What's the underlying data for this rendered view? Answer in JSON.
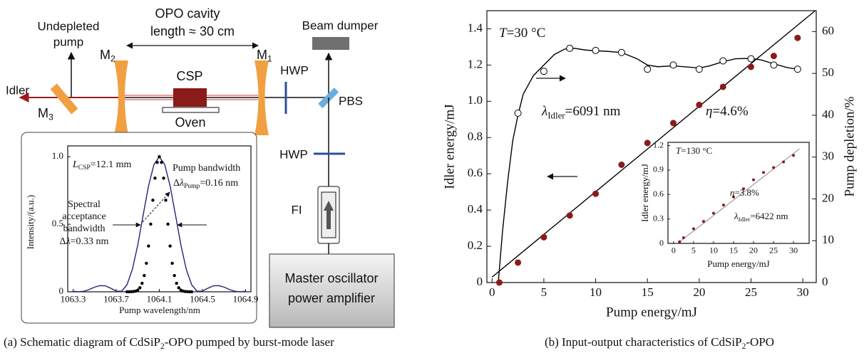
{
  "diagram": {
    "labels": {
      "opo_cavity": "OPO cavity",
      "cavity_length": "length ≈ 30 cm",
      "undepleted_1": "Undepleted",
      "undepleted_2": "pump",
      "beam_dumper": "Beam dumper",
      "idler": "Idler",
      "csp": "CSP",
      "oven": "Oven",
      "hwp_1": "HWP",
      "hwp_2": "HWP",
      "pbs": "PBS",
      "fi": "FI",
      "mopa_1": "Master oscillator",
      "mopa_2": "power amplifier"
    },
    "mirror_labels": [
      [
        {
          "t": "M"
        },
        {
          "t": "2",
          "sub": true
        }
      ],
      [
        {
          "t": "M"
        },
        {
          "t": "1",
          "sub": true
        }
      ],
      [
        {
          "t": "M"
        },
        {
          "t": "3",
          "sub": true
        }
      ]
    ]
  },
  "captions": {
    "a": [
      {
        "t": "(a) Schematic diagram of CdSiP"
      },
      {
        "t": "2",
        "sub": true
      },
      {
        "t": "-OPO pumped by burst-mode laser"
      }
    ],
    "b": [
      {
        "t": "(b) Input-output characteristics of CdSiP"
      },
      {
        "t": "2",
        "sub": true
      },
      {
        "t": "-OPO"
      }
    ]
  },
  "chart_data": [
    {
      "type": "line",
      "x_label": "Pump wavelength/nm",
      "y_label": "Intensity/(a.u.)",
      "xlim": [
        1063.25,
        1064.95
      ],
      "xticks": [
        1063.3,
        1063.7,
        1064.1,
        1064.5,
        1064.9
      ],
      "ylim": [
        0,
        1.08
      ],
      "yticks": [
        0,
        0.5,
        {
          "value": 1,
          "label": "1.0"
        }
      ],
      "series": [
        {
          "type": "line",
          "color": "#23237a",
          "x": [
            1063.3,
            1063.35,
            1063.4,
            1063.45,
            1063.5,
            1063.55,
            1063.6,
            1063.65,
            1063.7,
            1063.75,
            1063.8,
            1063.85,
            1063.9,
            1063.95,
            1064,
            1064.05,
            1064.1,
            1064.15,
            1064.2,
            1064.25,
            1064.3,
            1064.35,
            1064.4,
            1064.45,
            1064.5,
            1064.55,
            1064.6,
            1064.65,
            1064.7,
            1064.75,
            1064.8,
            1064.85,
            1064.9
          ],
          "values": [
            0.004,
            0,
            0.004,
            0.017,
            0.035,
            0.046,
            0.044,
            0.026,
            0.005,
            0.004,
            0.052,
            0.166,
            0.347,
            0.568,
            0.784,
            0.942,
            1,
            0.942,
            0.784,
            0.568,
            0.347,
            0.166,
            0.052,
            0.004,
            0.005,
            0.026,
            0.044,
            0.046,
            0.035,
            0.017,
            0.004,
            0,
            0.004
          ]
        },
        {
          "type": "scatter",
          "color": "#000000",
          "marker": "filled",
          "x": [
            1063.8,
            1063.82,
            1063.84,
            1063.86,
            1063.88,
            1063.9,
            1063.92,
            1063.94,
            1063.96,
            1063.98,
            1064,
            1064.02,
            1064.04,
            1064.06,
            1064.08,
            1064.1,
            1064.12,
            1064.14,
            1064.16,
            1064.18,
            1064.2,
            1064.22,
            1064.24,
            1064.26,
            1064.28,
            1064.3,
            1064.32,
            1064.34,
            1064.36,
            1064.38,
            1064.4
          ],
          "values": [
            0,
            0,
            0.001,
            0.002,
            0.005,
            0.013,
            0.03,
            0.063,
            0.12,
            0.211,
            0.339,
            0.501,
            0.678,
            0.841,
            0.958,
            1,
            0.958,
            0.841,
            0.678,
            0.501,
            0.339,
            0.211,
            0.12,
            0.063,
            0.03,
            0.013,
            0.005,
            0.002,
            0.001,
            0,
            0
          ]
        }
      ],
      "annotations": [
        [
          {
            "t": "L",
            "i": true
          },
          {
            "t": "CSP",
            "sub": true
          },
          {
            "t": "=12.1 mm"
          }
        ],
        [
          {
            "t": "Pump bandwidth"
          }
        ],
        [
          {
            "t": "Δ"
          },
          {
            "t": "λ",
            "i": true
          },
          {
            "t": "Pump",
            "sub": true
          },
          {
            "t": "=0.16 nm"
          }
        ],
        [
          {
            "t": "Spectral"
          }
        ],
        [
          {
            "t": "acceptance"
          }
        ],
        [
          {
            "t": "bandwidth"
          }
        ],
        [
          {
            "t": "Δ"
          },
          {
            "t": "λ",
            "i": true
          },
          {
            "t": "=0.33 nm"
          }
        ]
      ]
    },
    {
      "type": "scatter",
      "x_label": "Pump energy/mJ",
      "y_label": "Idler energy/mJ",
      "y2_label": "Pump depletion/%",
      "xlim": [
        -0.5,
        31.3
      ],
      "xticks": [
        0,
        5,
        10,
        15,
        20,
        25,
        30
      ],
      "ylim": [
        0,
        1.5
      ],
      "yticks": [
        0,
        0.2,
        0.4,
        0.6,
        0.8,
        {
          "value": 1,
          "label": "1.0"
        },
        1.2,
        1.4
      ],
      "y2lim": [
        0,
        65
      ],
      "y2ticks": [
        0,
        10,
        20,
        30,
        40,
        50,
        60
      ],
      "series": [
        {
          "type": "line",
          "color": "#000000",
          "x": [
            0,
            31.2
          ],
          "values": [
            0.03,
            1.5
          ]
        },
        {
          "type": "line",
          "axis": "y2",
          "color": "#000000",
          "x": [
            0.6,
            1,
            1.5,
            2,
            2.5,
            3,
            4,
            5,
            6,
            7,
            8,
            9,
            10,
            11,
            12.5,
            14,
            15,
            16,
            17.5,
            19,
            20,
            21,
            22.3,
            23.5,
            25,
            26,
            27.2,
            28.5,
            29.5
          ],
          "values": [
            0,
            12,
            24,
            34,
            40,
            45,
            49.5,
            52,
            54.5,
            55.8,
            56,
            55.6,
            55.4,
            55.3,
            55,
            53.5,
            52,
            51.6,
            51.8,
            51.5,
            51.3,
            51.8,
            52.8,
            53.5,
            53.6,
            53.2,
            52.3,
            51.4,
            51
          ]
        },
        {
          "type": "scatter",
          "color": "#8b1a1a",
          "marker": "filled",
          "x": [
            0.7,
            2.5,
            5,
            7.5,
            10,
            12.5,
            15,
            17.5,
            20,
            22.3,
            25,
            27.2,
            29.5
          ],
          "values": [
            0,
            0.11,
            0.25,
            0.37,
            0.49,
            0.65,
            0.77,
            0.88,
            0.98,
            1.08,
            1.19,
            1.25,
            1.35
          ]
        },
        {
          "type": "scatter",
          "axis": "y2",
          "color": "#000000",
          "marker": "open",
          "x": [
            2.5,
            5,
            7.5,
            10,
            12.5,
            15,
            17.5,
            20,
            22.3,
            25,
            27.2,
            29.5
          ],
          "values": [
            40.5,
            50.5,
            56,
            55.5,
            55,
            51,
            52,
            51,
            53,
            53.5,
            52,
            51
          ]
        }
      ],
      "annotations": [
        [
          {
            "t": "T",
            "i": true
          },
          {
            "t": "=30 °C"
          }
        ],
        [
          {
            "t": "λ",
            "i": true
          },
          {
            "t": "Idler",
            "sub": true
          },
          {
            "t": "=6091 nm"
          }
        ],
        [
          {
            "t": "η",
            "i": true
          },
          {
            "t": "=4.6%"
          }
        ]
      ]
    },
    {
      "type": "scatter",
      "x_label": "Pump energy/mJ",
      "y_label": "Idler energy/mJ",
      "xlim": [
        -1.4,
        33.9
      ],
      "xticks": [
        0,
        5,
        10,
        15,
        20,
        25,
        30
      ],
      "ylim": [
        0,
        1.24
      ],
      "yticks": [
        0,
        0.3,
        0.6,
        0.9,
        1.2
      ],
      "series": [
        {
          "type": "line",
          "color": "#888888",
          "x": [
            1,
            31.5
          ],
          "values": [
            0,
            1.16
          ]
        },
        {
          "type": "scatter",
          "color": "#8b1a1a",
          "marker": "filled",
          "x": [
            1.5,
            2.5,
            5,
            7.5,
            10,
            12.5,
            15,
            17.5,
            20,
            22.5,
            25,
            27.5,
            30
          ],
          "values": [
            0.02,
            0.07,
            0.18,
            0.27,
            0.37,
            0.47,
            0.57,
            0.67,
            0.78,
            0.87,
            0.93,
            1,
            1.08
          ]
        }
      ],
      "annotations": [
        [
          {
            "t": "T",
            "i": true
          },
          {
            "t": "=130 °C"
          }
        ],
        [
          {
            "t": "η",
            "i": true
          },
          {
            "t": "=3.8%"
          }
        ],
        [
          {
            "t": "λ",
            "i": true
          },
          {
            "t": "Idler",
            "sub": true
          },
          {
            "t": "=6422 nm"
          }
        ]
      ]
    }
  ]
}
